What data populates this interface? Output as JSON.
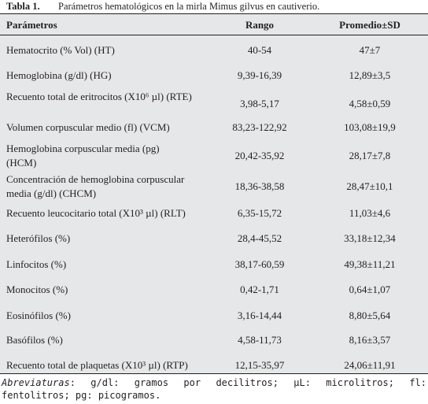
{
  "caption": {
    "label": "Tabla 1.",
    "text": "Parámetros hematológicos en la mirla Mimus gilvus en cautiverio."
  },
  "table": {
    "headers": [
      "Parámetros",
      "Rango",
      "Promedio±SD"
    ],
    "rows": [
      {
        "param": "Hematocrito (% Vol) (HT)",
        "range": "40-54",
        "mean": "47±7"
      },
      {
        "param": "Hemoglobina (g/dl) (HG)",
        "range": "9,39-16,39",
        "mean": "12,89±3,5"
      },
      {
        "param": "Recuento total de eritrocitos (X10⁶ µl) (RTE)",
        "range": "3,98-5,17",
        "mean": "4,58±0,59"
      },
      {
        "param": "Volumen corpuscular medio (fl) (VCM)",
        "range": "83,23-122,92",
        "mean": "103,08±19,9"
      },
      {
        "param": "Hemoglobina corpuscular media (pg) (HCM)",
        "range": "20,42-35,92",
        "mean": "28,17±7,8"
      },
      {
        "param": "Concentración de hemoglobina corpuscular media (g/dl) (CHCM)",
        "range": "18,36-38,58",
        "mean": "28,47±10,1"
      },
      {
        "param": "Recuento leucocitario total (X10³ µl) (RLT)",
        "range": "6,35-15,72",
        "mean": "11,03±4,6"
      },
      {
        "param": "Heterófilos (%)",
        "range": "28,4-45,52",
        "mean": "33,18±12,34"
      },
      {
        "param": "Linfocitos (%)",
        "range": "38,17-60,59",
        "mean": "49,38±11,21"
      },
      {
        "param": "Monocitos (%)",
        "range": "0,42-1,71",
        "mean": "0,64±1,07"
      },
      {
        "param": "Eosinófilos (%)",
        "range": "3,16-14,44",
        "mean": "8,80±5,64"
      },
      {
        "param": "Basófilos (%)",
        "range": "4,58-11,73",
        "mean": "8,16±3,57"
      },
      {
        "param": "Recuento total de plaquetas (X10³ µl) (RTP)",
        "range": "12,15-35,97",
        "mean": "24,06±11,91"
      }
    ]
  },
  "footnote": {
    "label": "Abreviaturas",
    "text": ": g/dl: gramos por decilitros; µL: microlitros; fl: fentolitros; pg: picogramos."
  },
  "colors": {
    "table_background": "#e6e7e8",
    "text": "#231f20",
    "rules": "#231f20"
  }
}
